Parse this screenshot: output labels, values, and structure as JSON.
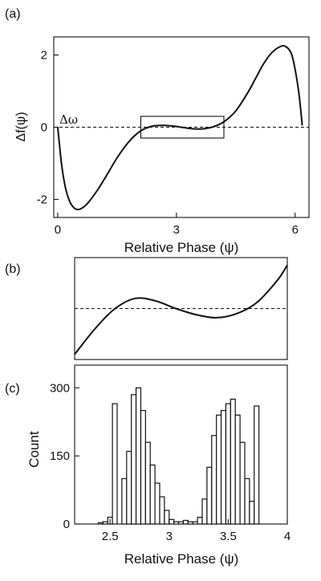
{
  "panel_labels": {
    "a": "(a)",
    "b": "(b)",
    "c": "(c)"
  },
  "chart_data": [
    {
      "id": "a",
      "type": "line",
      "title": "",
      "xlabel": "Relative Phase (ψ)",
      "ylabel": "Δf(ψ)",
      "xlim": [
        -0.1,
        6.35
      ],
      "ylim": [
        -2.5,
        2.5
      ],
      "xticks": [
        0,
        3,
        6
      ],
      "xtick_labels": [
        "0",
        "3",
        "6"
      ],
      "yticks": [
        2,
        0,
        -2
      ],
      "ytick_labels": [
        "2",
        "0",
        "-2"
      ],
      "reference_line": {
        "y": 0,
        "style": "dashed",
        "label": "Δω"
      },
      "zoom_box": {
        "x": [
          2.1,
          4.2
        ],
        "y": [
          -0.3,
          0.3
        ]
      },
      "series": [
        {
          "x": [
            0.0,
            0.1,
            0.2,
            0.3,
            0.4,
            0.5,
            0.6,
            0.7,
            0.8,
            1.0,
            1.2,
            1.5,
            1.8,
            2.1,
            2.4,
            2.7,
            3.0,
            3.3,
            3.6,
            3.9,
            4.2,
            4.5,
            4.8,
            5.0,
            5.2,
            5.4,
            5.6,
            5.75,
            5.9,
            6.0,
            6.1,
            6.18
          ],
          "y": [
            0.0,
            -1.05,
            -1.7,
            -2.05,
            -2.22,
            -2.28,
            -2.25,
            -2.17,
            -2.05,
            -1.75,
            -1.4,
            -0.85,
            -0.4,
            -0.1,
            0.03,
            0.05,
            0.02,
            -0.03,
            -0.05,
            0.0,
            0.15,
            0.45,
            0.95,
            1.35,
            1.75,
            2.05,
            2.22,
            2.24,
            2.05,
            1.6,
            0.9,
            0.05
          ]
        }
      ]
    },
    {
      "id": "b",
      "type": "line",
      "title": "",
      "xlim": [
        2.1,
        4.2
      ],
      "ylim": [
        -0.1,
        0.1
      ],
      "reference_line": {
        "y": 0,
        "style": "dashed"
      },
      "series": [
        {
          "x": [
            2.1,
            2.3,
            2.5,
            2.7,
            2.9,
            3.1,
            3.3,
            3.5,
            3.7,
            3.9,
            4.1,
            4.2
          ],
          "y": [
            -0.09,
            -0.04,
            0.0,
            0.02,
            0.015,
            0.0,
            -0.012,
            -0.018,
            -0.01,
            0.012,
            0.055,
            0.085
          ]
        }
      ]
    },
    {
      "id": "c",
      "type": "bar",
      "title": "",
      "xlabel": "Relative Phase (ψ)",
      "ylabel": "Count",
      "xlim": [
        2.2,
        4.0
      ],
      "ylim": [
        0,
        350
      ],
      "xticks": [
        2.5,
        3.0,
        3.5,
        4.0
      ],
      "xtick_labels": [
        "2.5",
        "3",
        "3.5",
        "4"
      ],
      "yticks": [
        0,
        150,
        300
      ],
      "ytick_labels": [
        "0",
        "150",
        "300"
      ],
      "bin_width": 0.04,
      "x": [
        2.42,
        2.46,
        2.5,
        2.54,
        2.62,
        2.66,
        2.7,
        2.74,
        2.78,
        2.82,
        2.86,
        2.9,
        2.94,
        2.98,
        3.02,
        3.06,
        3.1,
        3.14,
        3.18,
        3.22,
        3.26,
        3.3,
        3.34,
        3.38,
        3.42,
        3.46,
        3.5,
        3.54,
        3.58,
        3.62,
        3.66,
        3.7,
        3.74
      ],
      "values": [
        3,
        5,
        15,
        265,
        100,
        160,
        285,
        300,
        250,
        180,
        130,
        90,
        60,
        30,
        10,
        5,
        5,
        8,
        5,
        5,
        15,
        55,
        125,
        195,
        240,
        250,
        265,
        275,
        240,
        180,
        100,
        50,
        260
      ]
    }
  ]
}
